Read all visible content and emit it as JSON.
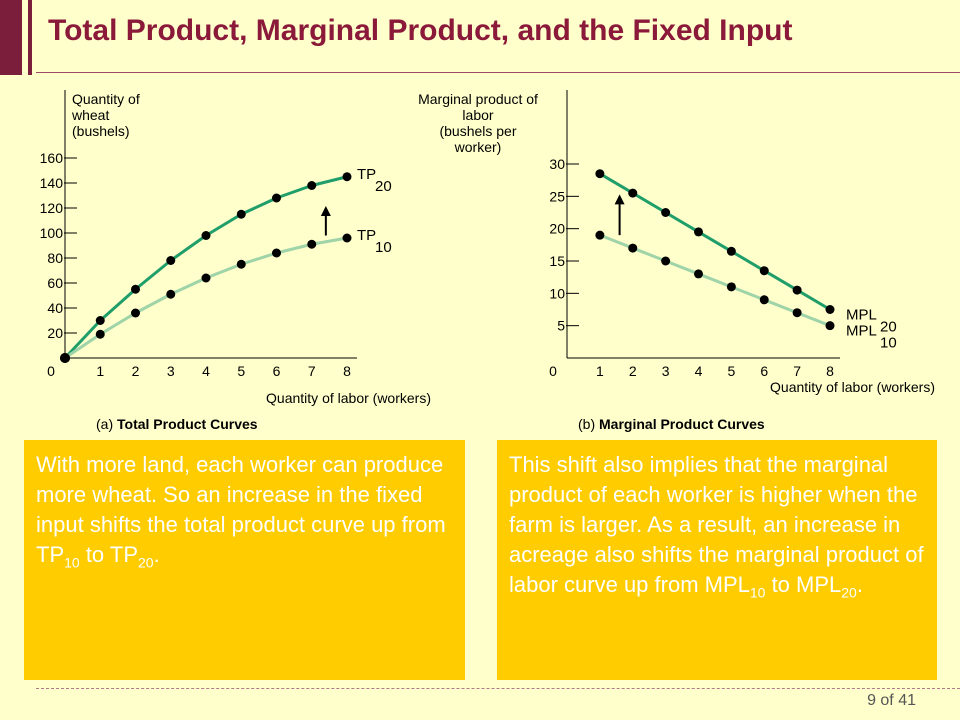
{
  "slide": {
    "title": "Total Product, Marginal Product, and the Fixed Input",
    "page_number": "9 of 41"
  },
  "colors": {
    "background": "#FFFFCC",
    "title": "#8B1A3A",
    "accent_bar": "#7A1E3C",
    "textbox": "#FFCC00",
    "curve_dark": "#1F9E6A",
    "curve_light": "#9FD3A8"
  },
  "chart_data": [
    {
      "type": "line",
      "panel_prefix": "(a)",
      "panel_title": "Total Product Curves",
      "ylabel_lines": [
        "Quantity of",
        "wheat",
        "(bushels)"
      ],
      "xlabel": "Quantity of labor (workers)",
      "x_ticks": [
        "0",
        "1",
        "2",
        "3",
        "4",
        "5",
        "6",
        "7",
        "8"
      ],
      "y_ticks": [
        20,
        40,
        60,
        80,
        100,
        120,
        140,
        160
      ],
      "xlim": [
        0,
        8
      ],
      "ylim": [
        0,
        160
      ],
      "x": [
        0,
        1,
        2,
        3,
        4,
        5,
        6,
        7,
        8
      ],
      "series": [
        {
          "name": "TP",
          "subscript": "20",
          "values": [
            0,
            30,
            55,
            78,
            98,
            115,
            128,
            138,
            145
          ]
        },
        {
          "name": "TP",
          "subscript": "10",
          "values": [
            0,
            19,
            36,
            51,
            64,
            75,
            84,
            91,
            96
          ]
        }
      ]
    },
    {
      "type": "line",
      "panel_prefix": "(b)",
      "panel_title": "Marginal Product Curves",
      "ylabel_lines": [
        "Marginal product of",
        "labor",
        "(bushels per",
        "worker)"
      ],
      "xlabel": "Quantity of labor (workers)",
      "x_ticks": [
        "0",
        "1",
        "2",
        "3",
        "4",
        "5",
        "6",
        "7",
        "8"
      ],
      "y_ticks": [
        5,
        10,
        15,
        20,
        25,
        30
      ],
      "xlim": [
        0,
        8
      ],
      "ylim": [
        0,
        30
      ],
      "x": [
        1,
        2,
        3,
        4,
        5,
        6,
        7,
        8
      ],
      "series": [
        {
          "name": "MPL",
          "subscript": "20",
          "values": [
            28.5,
            25.5,
            22.5,
            19.5,
            16.5,
            13.5,
            10.5,
            7.5
          ]
        },
        {
          "name": "MPL",
          "subscript": "10",
          "values": [
            19,
            17,
            15,
            13,
            11,
            9,
            7,
            5
          ]
        }
      ]
    }
  ],
  "text_boxes": {
    "left": {
      "part1": "With more land, each worker can produce more wheat. So an increase in the fixed input shifts the total product curve up from TP",
      "sub1": "10",
      "part2": " to TP",
      "sub2": "20",
      "part3": "."
    },
    "right": {
      "part1": "This shift also implies that the marginal product of each worker is higher when the farm is larger. As a result, an increase in acreage also shifts the marginal product of labor curve up from MPL",
      "sub1": "10",
      "part2": " to MPL",
      "sub2": "20",
      "part3": "."
    }
  }
}
